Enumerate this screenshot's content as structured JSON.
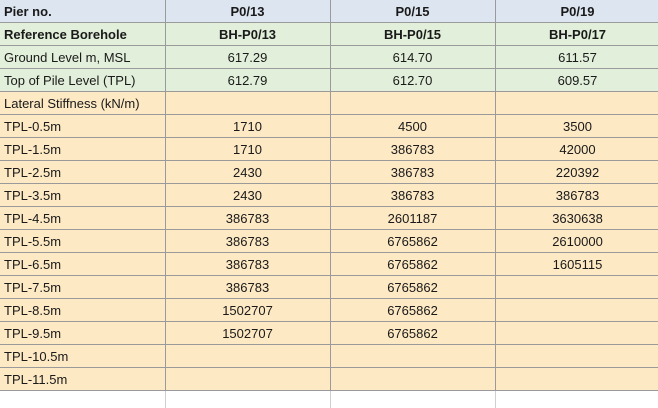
{
  "header": {
    "pier_label": "Pier no.",
    "piers": [
      "P0/13",
      "P0/15",
      "P0/19"
    ]
  },
  "borehole": {
    "label": "Reference Borehole",
    "values": [
      "BH-P0/13",
      "BH-P0/15",
      "BH-P0/17"
    ]
  },
  "ground_level": {
    "label": "Ground Level m, MSL",
    "values": [
      "617.29",
      "614.70",
      "611.57"
    ]
  },
  "top_of_pile": {
    "label": "Top of Pile Level (TPL)",
    "values": [
      "612.79",
      "612.70",
      "609.57"
    ]
  },
  "stiffness_header": {
    "label": "Lateral Stiffness (kN/m)"
  },
  "rows": [
    {
      "label": "TPL-0.5m",
      "values": [
        "1710",
        "4500",
        "3500"
      ]
    },
    {
      "label": "TPL-1.5m",
      "values": [
        "1710",
        "386783",
        "42000"
      ]
    },
    {
      "label": "TPL-2.5m",
      "values": [
        "2430",
        "386783",
        "220392"
      ]
    },
    {
      "label": "TPL-3.5m",
      "values": [
        "2430",
        "386783",
        "386783"
      ]
    },
    {
      "label": "TPL-4.5m",
      "values": [
        "386783",
        "2601187",
        "3630638"
      ]
    },
    {
      "label": "TPL-5.5m",
      "values": [
        "386783",
        "6765862",
        "2610000"
      ]
    },
    {
      "label": "TPL-6.5m",
      "values": [
        "386783",
        "6765862",
        "1605115"
      ]
    },
    {
      "label": "TPL-7.5m",
      "values": [
        "386783",
        "6765862",
        ""
      ]
    },
    {
      "label": "TPL-8.5m",
      "values": [
        "1502707",
        "6765862",
        ""
      ]
    },
    {
      "label": "TPL-9.5m",
      "values": [
        "1502707",
        "6765862",
        ""
      ]
    },
    {
      "label": "TPL-10.5m",
      "values": [
        "",
        "",
        ""
      ]
    },
    {
      "label": "TPL-11.5m",
      "values": [
        "",
        "",
        ""
      ]
    }
  ]
}
